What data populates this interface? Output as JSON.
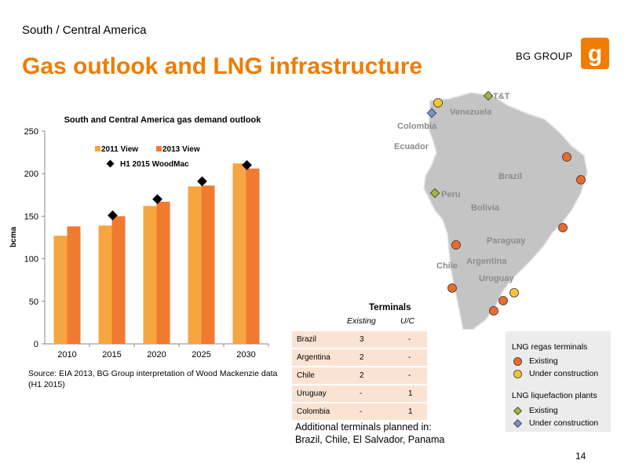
{
  "slide": {
    "region": "South / Central America",
    "title": "Gas outlook and LNG infrastructure",
    "brand": "BG GROUP",
    "page_number": "14",
    "source": "Source: EIA 2013, BG Group interpretation of Wood Mackenzie data (H1 2015)",
    "planned_terminals": {
      "line1": "Additional terminals planned in:",
      "line2": "Brazil, Chile, El Salvador,  Panama"
    }
  },
  "colors": {
    "accent": "#f07c00",
    "series_2011": "#f7a540",
    "series_2013": "#f07a30",
    "marker": "#000000",
    "regas": "#ee6a2c",
    "regas_uc": "#f7c531",
    "liquefaction": "#a7b33b",
    "liquefaction_uc": "#7d8fc9",
    "table_row": "#fbe3d4"
  },
  "chart_data": {
    "type": "bar",
    "title": "South and Central America gas demand outlook",
    "xlabel": "",
    "ylabel": "bcma",
    "categories": [
      "2010",
      "2015",
      "2020",
      "2025",
      "2030"
    ],
    "ylim": [
      0,
      250
    ],
    "yticks": [
      0,
      50,
      100,
      150,
      200,
      250
    ],
    "grid": false,
    "legend_position": "top-left",
    "series": [
      {
        "name": "2011 View",
        "kind": "bar",
        "values": [
          127,
          139,
          162,
          185,
          212
        ]
      },
      {
        "name": "2013 View",
        "kind": "bar",
        "values": [
          138,
          150,
          167,
          186,
          206
        ]
      },
      {
        "name": "H1 2015 WoodMac",
        "kind": "marker",
        "values": [
          null,
          151,
          170,
          191,
          210
        ]
      }
    ]
  },
  "terminals_table": {
    "title": "Terminals",
    "columns": [
      "Existing",
      "U/C"
    ],
    "rows": [
      {
        "country": "Brazil",
        "existing": "3",
        "uc": "-"
      },
      {
        "country": "Argentina",
        "existing": "2",
        "uc": "-"
      },
      {
        "country": "Chile",
        "existing": "2",
        "uc": "-"
      },
      {
        "country": "Uruguay",
        "existing": "-",
        "uc": "1"
      },
      {
        "country": "Colombia",
        "existing": "-",
        "uc": "1"
      }
    ]
  },
  "map": {
    "labels": [
      "T&T",
      "Venezuela",
      "Colombia",
      "Ecuador",
      "Brazil",
      "Peru",
      "Bolivia",
      "Paraguay",
      "Argentina",
      "Chile",
      "Uruguay"
    ]
  },
  "legend": {
    "regas_heading": "LNG regas terminals",
    "regas_existing": "Existing",
    "regas_uc": "Under construction",
    "liq_heading": "LNG liquefaction plants",
    "liq_existing": "Existing",
    "liq_uc": "Under construction"
  }
}
